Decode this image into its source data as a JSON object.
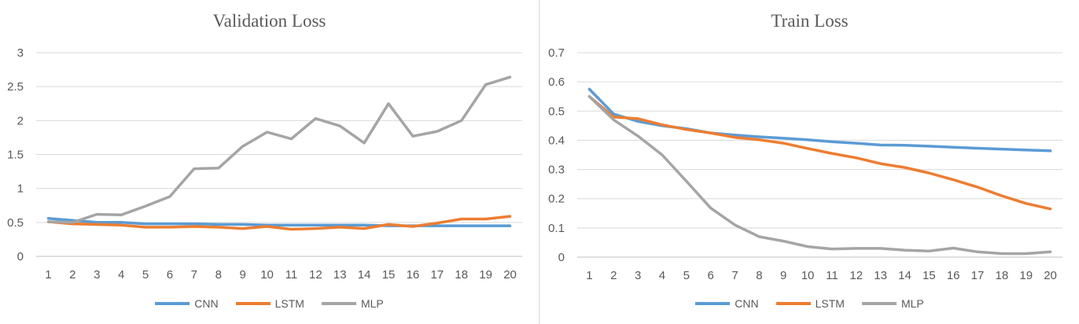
{
  "chart_data": [
    {
      "type": "line",
      "title": "Validation Loss",
      "xlabel": "",
      "ylabel": "",
      "categories": [
        "1",
        "2",
        "3",
        "4",
        "5",
        "6",
        "7",
        "8",
        "9",
        "10",
        "11",
        "12",
        "13",
        "14",
        "15",
        "16",
        "17",
        "18",
        "19",
        "20"
      ],
      "ylim": [
        0,
        3
      ],
      "yticks": [
        "0",
        "0.5",
        "1",
        "1.5",
        "2",
        "2.5",
        "3"
      ],
      "grid": true,
      "legend": "bottom",
      "series": [
        {
          "name": "CNN",
          "color": "#5b9bd5",
          "values": [
            0.56,
            0.53,
            0.5,
            0.5,
            0.48,
            0.48,
            0.48,
            0.47,
            0.47,
            0.46,
            0.46,
            0.46,
            0.46,
            0.46,
            0.45,
            0.45,
            0.45,
            0.45,
            0.45,
            0.45
          ]
        },
        {
          "name": "LSTM",
          "color": "#ed7d31",
          "values": [
            0.51,
            0.48,
            0.47,
            0.46,
            0.43,
            0.43,
            0.44,
            0.43,
            0.41,
            0.44,
            0.4,
            0.41,
            0.43,
            0.41,
            0.47,
            0.44,
            0.49,
            0.55,
            0.55,
            0.59
          ]
        },
        {
          "name": "MLP",
          "color": "#a5a5a5",
          "values": [
            0.51,
            0.5,
            0.62,
            0.61,
            0.74,
            0.88,
            1.29,
            1.3,
            1.62,
            1.83,
            1.73,
            2.03,
            1.92,
            1.67,
            2.25,
            1.77,
            1.84,
            2.0,
            2.53,
            2.64
          ]
        }
      ]
    },
    {
      "type": "line",
      "title": "Train Loss",
      "xlabel": "",
      "ylabel": "",
      "categories": [
        "1",
        "2",
        "3",
        "4",
        "5",
        "6",
        "7",
        "8",
        "9",
        "10",
        "11",
        "12",
        "13",
        "14",
        "15",
        "16",
        "17",
        "18",
        "19",
        "20"
      ],
      "ylim": [
        0,
        0.7
      ],
      "yticks": [
        "0",
        "0.1",
        "0.2",
        "0.3",
        "0.4",
        "0.5",
        "0.6",
        "0.7"
      ],
      "grid": true,
      "legend": "bottom",
      "series": [
        {
          "name": "CNN",
          "color": "#5b9bd5",
          "values": [
            0.575,
            0.49,
            0.465,
            0.45,
            0.44,
            0.425,
            0.418,
            0.412,
            0.407,
            0.402,
            0.395,
            0.39,
            0.384,
            0.383,
            0.38,
            0.376,
            0.373,
            0.37,
            0.367,
            0.364
          ]
        },
        {
          "name": "LSTM",
          "color": "#ed7d31",
          "values": [
            0.55,
            0.48,
            0.474,
            0.453,
            0.437,
            0.425,
            0.41,
            0.402,
            0.39,
            0.372,
            0.355,
            0.34,
            0.32,
            0.307,
            0.288,
            0.265,
            0.24,
            0.21,
            0.184,
            0.165
          ]
        },
        {
          "name": "MLP",
          "color": "#a5a5a5",
          "values": [
            0.55,
            0.47,
            0.415,
            0.35,
            0.26,
            0.168,
            0.11,
            0.07,
            0.055,
            0.036,
            0.028,
            0.03,
            0.03,
            0.024,
            0.021,
            0.031,
            0.018,
            0.012,
            0.012,
            0.018
          ]
        }
      ]
    }
  ]
}
